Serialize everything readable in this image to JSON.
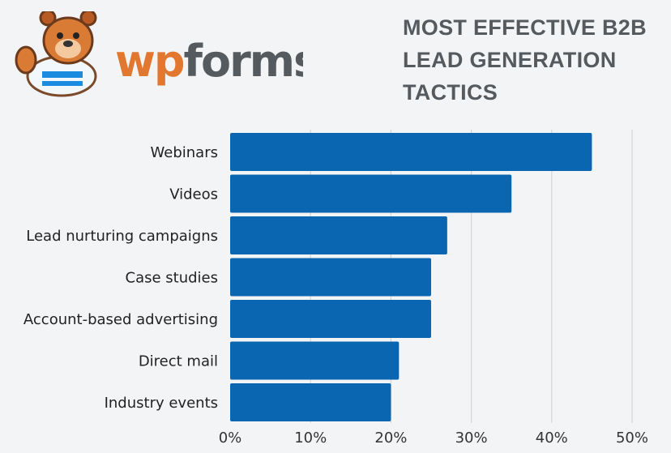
{
  "logo": {
    "text": "wpforms"
  },
  "colors": {
    "bar": "#0b66b1",
    "background": "#f3f4f6",
    "grid": "#d3d5d9",
    "logo_orange": "#e27730",
    "logo_gray": "#555a5f"
  },
  "chart_data": {
    "type": "bar",
    "orientation": "horizontal",
    "title": "MOST EFFECTIVE B2B LEAD GENERATION TACTICS",
    "categories": [
      "Webinars",
      "Videos",
      "Lead nurturing campaigns",
      "Case studies",
      "Account-based advertising",
      "Direct mail",
      "Industry events"
    ],
    "values": [
      45,
      35,
      27,
      25,
      25,
      21,
      20
    ],
    "unit": "%",
    "xlim": [
      0,
      50
    ],
    "xticks": [
      "0%",
      "10%",
      "20%",
      "30%",
      "40%",
      "50%"
    ],
    "xlabel": "",
    "ylabel": "",
    "grid": "vertical",
    "legend": "none"
  }
}
